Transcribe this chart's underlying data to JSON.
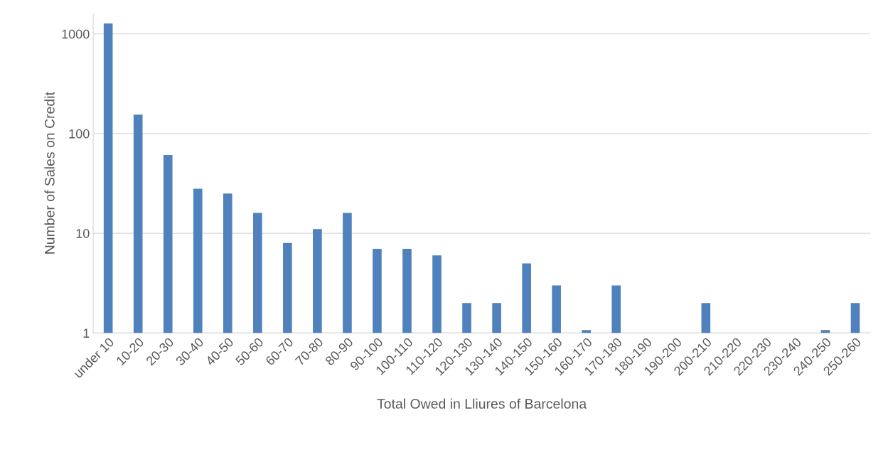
{
  "chart_data": {
    "type": "bar",
    "xlabel": "Total Owed in Lliures of Barcelona",
    "ylabel": "Number of Sales on Credit",
    "categories": [
      "under 10",
      "10-20",
      "20-30",
      "30-40",
      "40-50",
      "50-60",
      "60-70",
      "70-80",
      "80-90",
      "90-100",
      "100-110",
      "110-120",
      "120-130",
      "130-140",
      "140-150",
      "150-160",
      "160-170",
      "170-180",
      "180-190",
      "190-200",
      "200-210",
      "210-220",
      "220-230",
      "230-240",
      "240-250",
      "250-260"
    ],
    "values": [
      1270,
      155,
      61,
      28,
      25,
      16,
      8,
      11,
      16,
      7,
      7,
      6,
      2,
      2,
      5,
      3,
      1.07,
      3,
      null,
      null,
      2,
      null,
      null,
      null,
      1.07,
      2
    ],
    "color": "#4f81bd",
    "log": "y",
    "ylim": [
      1,
      1600
    ],
    "yticks": [
      1,
      10,
      100,
      1000
    ],
    "grid": "y"
  }
}
